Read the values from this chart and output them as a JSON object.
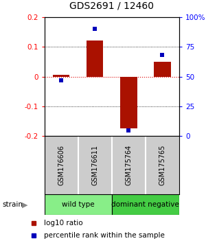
{
  "title": "GDS2691 / 12460",
  "samples": [
    "GSM176606",
    "GSM176611",
    "GSM175764",
    "GSM175765"
  ],
  "log10_ratio": [
    0.005,
    0.12,
    -0.175,
    0.05
  ],
  "percentile_rank": [
    47,
    90,
    5,
    68
  ],
  "groups": [
    {
      "label": "wild type",
      "samples": [
        0,
        1
      ],
      "color": "#88EE88"
    },
    {
      "label": "dominant negative",
      "samples": [
        2,
        3
      ],
      "color": "#44CC44"
    }
  ],
  "bar_color": "#AA1100",
  "dot_color": "#0000BB",
  "ylim_left": [
    -0.2,
    0.2
  ],
  "ylim_right": [
    0,
    100
  ],
  "yticks_left": [
    -0.2,
    -0.1,
    0.0,
    0.1,
    0.2
  ],
  "yticks_right": [
    0,
    25,
    50,
    75,
    100
  ],
  "yticklabels_left": [
    "-0.2",
    "-0.1",
    "0",
    "0.1",
    "0.2"
  ],
  "yticklabels_right": [
    "0",
    "25",
    "50",
    "75",
    "100%"
  ],
  "zero_line_color": "#DD0000",
  "background_color": "#ffffff",
  "sample_bg_color": "#cccccc",
  "legend_ratio_label": "log10 ratio",
  "legend_pct_label": "percentile rank within the sample"
}
